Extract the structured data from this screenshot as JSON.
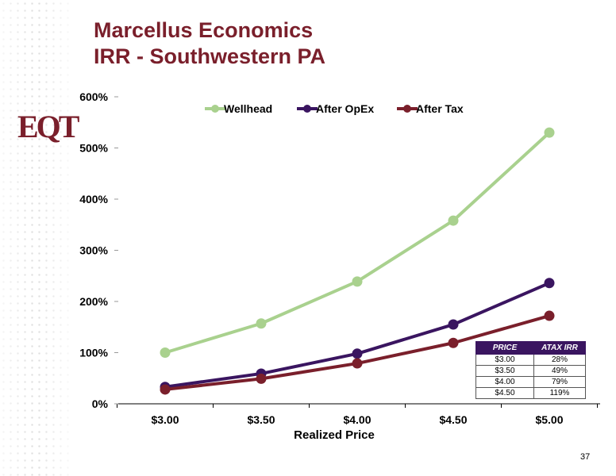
{
  "slide": {
    "title_line1": "Marcellus Economics",
    "title_line2": "IRR - Southwestern PA",
    "logo_text": "EQT",
    "page_number": "37"
  },
  "colors": {
    "title": "#7a1f2b",
    "wellhead": "#a9d18e",
    "after_opex": "#3a1560",
    "after_tax": "#7a1f2b",
    "table_header": "#3a1560"
  },
  "chart_data": {
    "type": "line",
    "title": "",
    "xlabel": "Realized Price",
    "ylabel": "",
    "categories": [
      "$3.00",
      "$3.50",
      "$4.00",
      "$4.50",
      "$5.00"
    ],
    "ylim": [
      0,
      600
    ],
    "yticks": [
      0,
      100,
      200,
      300,
      400,
      500,
      600
    ],
    "ytick_labels": [
      "0%",
      "100%",
      "200%",
      "300%",
      "400%",
      "500%",
      "600%"
    ],
    "grid": false,
    "legend_position": "top",
    "series": [
      {
        "name": "Wellhead",
        "values": [
          100,
          157,
          239,
          358,
          530
        ],
        "color": "#a9d18e"
      },
      {
        "name": "After OpEx",
        "values": [
          33,
          59,
          98,
          155,
          236
        ],
        "color": "#3a1560"
      },
      {
        "name": "After Tax",
        "values": [
          28,
          49,
          79,
          119,
          172
        ],
        "color": "#7a1f2b"
      }
    ]
  },
  "irr_table": {
    "headers": [
      "PRICE",
      "ATAX IRR"
    ],
    "rows": [
      [
        "$3.00",
        "28%"
      ],
      [
        "$3.50",
        "49%"
      ],
      [
        "$4.00",
        "79%"
      ],
      [
        "$4.50",
        "119%"
      ]
    ]
  }
}
